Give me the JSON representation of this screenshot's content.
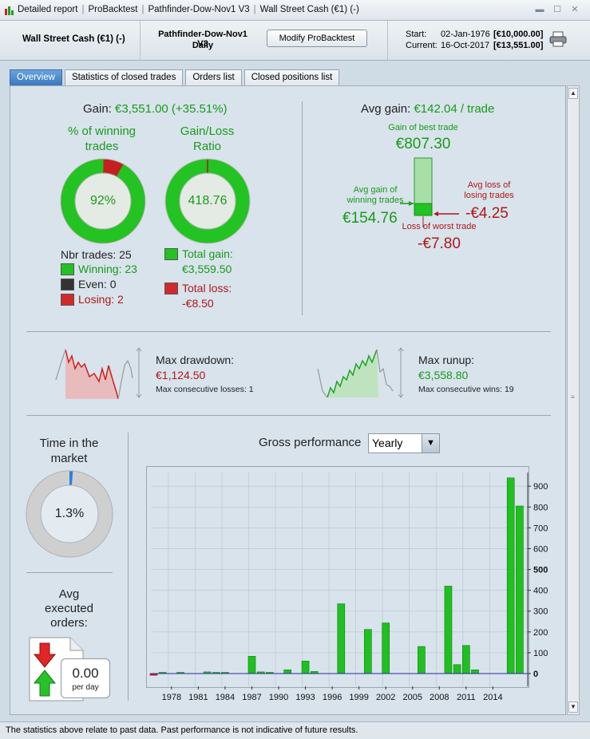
{
  "titlebar": {
    "crumbs": [
      "Detailed report",
      "ProBacktest",
      "Pathfinder-Dow-Nov1 V3",
      "Wall Street Cash (€1) (-)"
    ]
  },
  "header": {
    "instrument": "Wall Street Cash (€1) (-)",
    "system_name": "Pathfinder-Dow-Nov1 V3",
    "timeframe": "Daily",
    "modify_button": "Modify ProBacktest",
    "start_label": "Start:",
    "start_date": "02-Jan-1976",
    "start_value": "[€10,000.00]",
    "current_label": "Current:",
    "current_date": "16-Oct-2017",
    "current_value": "[€13,551.00]"
  },
  "tabs": [
    "Overview",
    "Statistics of closed trades",
    "Orders list",
    "Closed positions list"
  ],
  "gain": {
    "label": "Gain:",
    "value": "€3,551.00 (+35.51%)"
  },
  "winning": {
    "title_line1": "% of winning",
    "title_line2": "trades",
    "value": "92%",
    "fraction": 0.92
  },
  "ratio": {
    "title_line1": "Gain/Loss",
    "title_line2": "Ratio",
    "value": "418.76"
  },
  "trades": {
    "nbr": "Nbr trades: 25",
    "winning": "Winning: 23",
    "even": "Even: 0",
    "losing": "Losing: 2",
    "total_gain_label": "Total gain:",
    "total_gain": "€3,559.50",
    "total_loss_label": "Total loss:",
    "total_loss": "-€8.50"
  },
  "avg": {
    "label": "Avg gain:",
    "value": "€142.04 / trade",
    "best_label": "Gain of best trade",
    "best_value": "€807.30",
    "avg_win_label_1": "Avg gain of",
    "avg_win_label_2": "winning trades",
    "avg_win_value": "€154.76",
    "avg_loss_label_1": "Avg loss of",
    "avg_loss_label_2": "losing trades",
    "avg_loss_value": "-€4.25",
    "worst_label": "Loss of worst trade",
    "worst_value": "-€7.80"
  },
  "drawdown": {
    "label": "Max drawdown:",
    "value": "€1,124.50",
    "sub": "Max consecutive losses: 1"
  },
  "runup": {
    "label": "Max runup:",
    "value": "€3,558.80",
    "sub": "Max consecutive wins: 19"
  },
  "market": {
    "title_line1": "Time in the",
    "title_line2": "market",
    "value": "1.3%",
    "fraction": 0.013
  },
  "orders": {
    "title_line1": "Avg",
    "title_line2": "executed",
    "title_line3": "orders:",
    "value": "0.00",
    "unit": "per day"
  },
  "perf": {
    "title": "Gross performance",
    "period": "Yearly"
  },
  "chart_data": {
    "type": "bar",
    "x": [
      1976,
      1977,
      1978,
      1979,
      1980,
      1981,
      1982,
      1983,
      1984,
      1985,
      1986,
      1987,
      1988,
      1989,
      1990,
      1991,
      1992,
      1993,
      1994,
      1995,
      1996,
      1997,
      1998,
      1999,
      2000,
      2001,
      2002,
      2003,
      2004,
      2005,
      2006,
      2007,
      2008,
      2009,
      2010,
      2011,
      2012,
      2013,
      2014,
      2015,
      2016,
      2017
    ],
    "values": [
      -8,
      3,
      0,
      3,
      0,
      0,
      8,
      5,
      5,
      0,
      0,
      83,
      8,
      5,
      0,
      18,
      0,
      60,
      10,
      0,
      0,
      335,
      0,
      0,
      212,
      0,
      243,
      0,
      0,
      0,
      130,
      0,
      0,
      420,
      43,
      135,
      18,
      0,
      0,
      0,
      940,
      805
    ],
    "x_tick_labels": [
      "1978",
      "1981",
      "1984",
      "1987",
      "1990",
      "1993",
      "1996",
      "1999",
      "2002",
      "2005",
      "2008",
      "2011",
      "2014"
    ],
    "y_tick_labels": [
      "0",
      "100",
      "200",
      "300",
      "400",
      "500",
      "600",
      "700",
      "800",
      "900"
    ],
    "ylim": [
      -30,
      960
    ],
    "bar_color": "#1fc01f",
    "negative_color": "#d42020",
    "grid": true
  },
  "footer": "The statistics above relate to past data. Past performance is not indicative of future results.",
  "colors": {
    "green": "#1a9a1a",
    "red": "#b01818",
    "accent": "#3a78be"
  }
}
